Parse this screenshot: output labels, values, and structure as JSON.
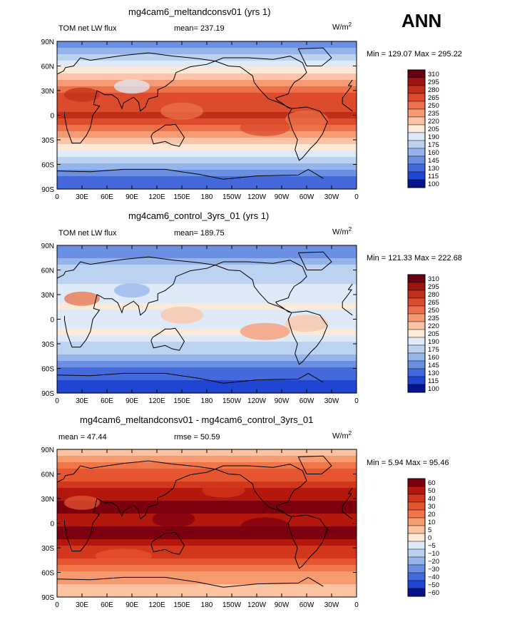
{
  "season": "ANN",
  "units_base": "W/m",
  "units_sup": "2",
  "lat_labels": [
    "90N",
    "60N",
    "30N",
    "0",
    "30S",
    "60S",
    "90S"
  ],
  "lon_labels": [
    "0",
    "30E",
    "60E",
    "90E",
    "120E",
    "150E",
    "180",
    "150W",
    "120W",
    "90W",
    "60W",
    "30W",
    "0"
  ],
  "panels": [
    {
      "title": "mg4cam6_meltandconsv01 (yrs 1)",
      "left_label": "TOM net LW flux",
      "stat_label": "mean= 237.19",
      "minmax": "Min = 129.07 Max = 295.22",
      "levels": [
        "310",
        "295",
        "280",
        "265",
        "250",
        "235",
        "220",
        "205",
        "190",
        "175",
        "160",
        "145",
        "130",
        "115",
        "100"
      ]
    },
    {
      "title": "mg4cam6_control_3yrs_01 (yrs 1)",
      "left_label": "TOM net LW flux",
      "stat_label": "mean= 189.75",
      "minmax": "Min = 121.33 Max = 222.68",
      "levels": [
        "310",
        "295",
        "280",
        "265",
        "250",
        "235",
        "220",
        "205",
        "190",
        "175",
        "160",
        "145",
        "130",
        "115",
        "100"
      ]
    },
    {
      "title": "mg4cam6_meltandconsv01 - mg4cam6_control_3yrs_01",
      "left_label": "mean =   47.44",
      "stat_label": "rmse =   50.59",
      "minmax": "Min =    5.94 Max =   95.46",
      "levels": [
        "60",
        "50",
        "40",
        "30",
        "20",
        "10",
        "5",
        "0",
        "−5",
        "−10",
        "−20",
        "−30",
        "−40",
        "−50",
        "−60"
      ]
    }
  ],
  "colors": {
    "abs_scale": [
      "#670012",
      "#9c160f",
      "#c22f18",
      "#dc4b2c",
      "#ec7148",
      "#f59a73",
      "#fbc4a6",
      "#fde9d7",
      "#dfeaf8",
      "#bcd2f1",
      "#94b4ea",
      "#6b90e3",
      "#4369dc",
      "#1f45d2",
      "#07138c"
    ],
    "diff_scale": [
      "#7d0010",
      "#b4180d",
      "#d2361b",
      "#e55530",
      "#f07649",
      "#f69a70",
      "#fbc39f",
      "#fde9d7",
      "#dfeaf8",
      "#bcd2f1",
      "#94b4ea",
      "#6b90e3",
      "#4369dc",
      "#1f45d2",
      "#07138c"
    ]
  }
}
